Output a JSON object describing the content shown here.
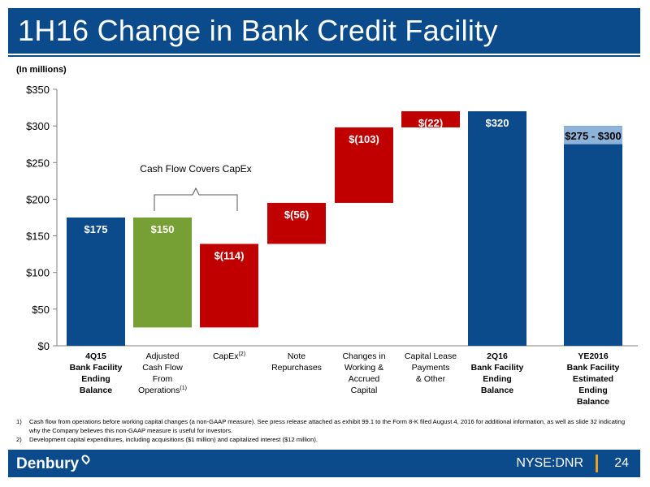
{
  "title": "1H16 Change in Bank Credit Facility",
  "units_note": "(In millions)",
  "annotation": "Cash Flow Covers CapEx",
  "chart_data": {
    "type": "bar",
    "subtype": "waterfall",
    "ylim": [
      0,
      350
    ],
    "yticks": [
      "$0",
      "$50",
      "$100",
      "$150",
      "$200",
      "$250",
      "$300",
      "$350"
    ],
    "categories": [
      [
        "4Q15",
        "Bank Facility",
        "Ending",
        "Balance"
      ],
      [
        "Adjusted",
        "Cash Flow",
        "From",
        "Operations"
      ],
      [
        "CapEx"
      ],
      [
        "Note",
        "Repurchases"
      ],
      [
        "Changes in",
        "Working &",
        "Accrued",
        "Capital"
      ],
      [
        "Capital Lease",
        "Payments",
        "& Other"
      ],
      [
        "2Q16",
        "Bank Facility",
        "Ending",
        "Balance"
      ],
      [
        "YE2016",
        "Bank Facility",
        "Estimated",
        "Ending",
        "Balance"
      ]
    ],
    "category_superscripts": [
      "",
      "(1)",
      "(2)",
      "",
      "",
      "",
      "",
      ""
    ],
    "bold_categories": [
      0,
      6,
      7
    ],
    "bars": [
      {
        "start": 0,
        "end": 175,
        "label": "$175",
        "color": "#0b4a8b"
      },
      {
        "start": 25,
        "end": 175,
        "label": "$150",
        "color": "#76a034"
      },
      {
        "start": 25,
        "end": 139,
        "label": "$(114)",
        "color": "#c00000"
      },
      {
        "start": 139,
        "end": 195,
        "label": "$(56)",
        "color": "#c00000"
      },
      {
        "start": 195,
        "end": 298,
        "label": "$(103)",
        "color": "#c00000"
      },
      {
        "start": 298,
        "end": 320,
        "label": "$(22)",
        "color": "#c00000"
      },
      {
        "start": 0,
        "end": 320,
        "label": "$320",
        "color": "#0b4a8b"
      },
      {
        "start": 0,
        "end": 300,
        "range_low": 275,
        "label": "$275 - $300",
        "color": "#0b4a8b",
        "range_color": "#8db3d9"
      }
    ]
  },
  "footnotes": [
    {
      "num": "1)",
      "text": "Cash flow from operations before working capital changes (a non-GAAP measure). See press release attached as exhibit 99.1 to the Form 8-K filed August 4, 2016 for additional information, as well as slide 32 indicating why the Company believes this non-GAAP measure is useful for investors."
    },
    {
      "num": "2)",
      "text": "Development capital expenditures, including acquisitions ($1 million) and capitalized interest ($12 million)."
    }
  ],
  "footer": {
    "logo": "Denbury",
    "ticker": "NYSE:DNR",
    "page": "24"
  }
}
